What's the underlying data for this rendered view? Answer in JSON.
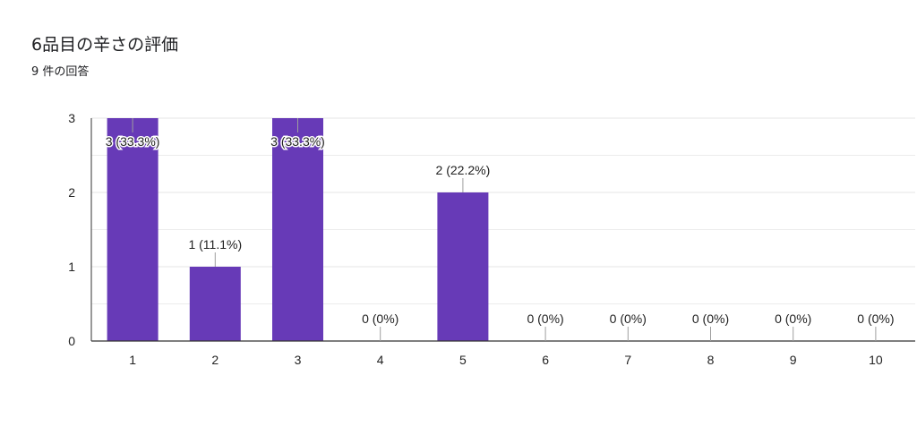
{
  "header": {
    "title": "6品目の辛さの評価",
    "response_count": "9 件の回答"
  },
  "colors": {
    "bar": "#673ab7",
    "axis": "#333333",
    "grid": "#e6e6e6",
    "tick_line": "#9e9e9e",
    "text": "#222222"
  },
  "chart_data": {
    "type": "bar",
    "categories": [
      "1",
      "2",
      "3",
      "4",
      "5",
      "6",
      "7",
      "8",
      "9",
      "10"
    ],
    "values": [
      3,
      1,
      3,
      0,
      2,
      0,
      0,
      0,
      0,
      0
    ],
    "data_labels": [
      "3 (33.3%)",
      "1 (11.1%)",
      "3 (33.3%)",
      "0 (0%)",
      "2 (22.2%)",
      "0 (0%)",
      "0 (0%)",
      "0 (0%)",
      "0 (0%)",
      "0 (0%)"
    ],
    "y_ticks": [
      "0",
      "1",
      "2",
      "3"
    ],
    "ylim": [
      0,
      3
    ],
    "grid": true,
    "xlabel": "",
    "ylabel": ""
  }
}
